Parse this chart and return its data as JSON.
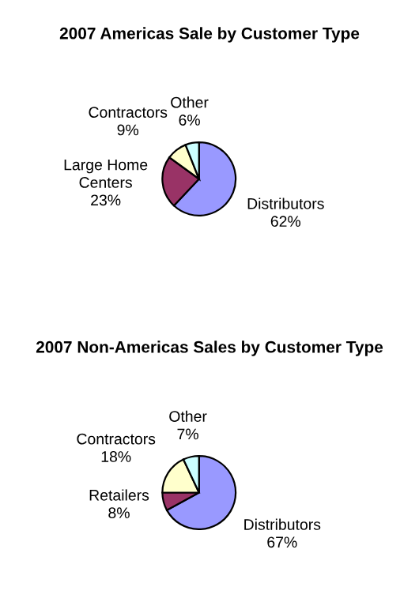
{
  "chart_data": [
    {
      "type": "pie",
      "title": "2007 Americas Sale by Customer Type",
      "categories": [
        "Distributors",
        "Large Home\nCenters",
        "Contractors",
        "Other"
      ],
      "values": [
        62,
        23,
        9,
        6
      ],
      "value_labels": [
        "62%",
        "23%",
        "9%",
        "6%"
      ],
      "colors": [
        "#9999ff",
        "#993366",
        "#ffffcc",
        "#ccffff"
      ]
    },
    {
      "type": "pie",
      "title": "2007 Non-Americas Sales by Customer Type",
      "categories": [
        "Distributors",
        "Retailers",
        "Contractors",
        "Other"
      ],
      "values": [
        67,
        8,
        18,
        7
      ],
      "value_labels": [
        "67%",
        "8%",
        "18%",
        "7%"
      ],
      "colors": [
        "#9999ff",
        "#993366",
        "#ffffcc",
        "#ccffff"
      ]
    }
  ]
}
